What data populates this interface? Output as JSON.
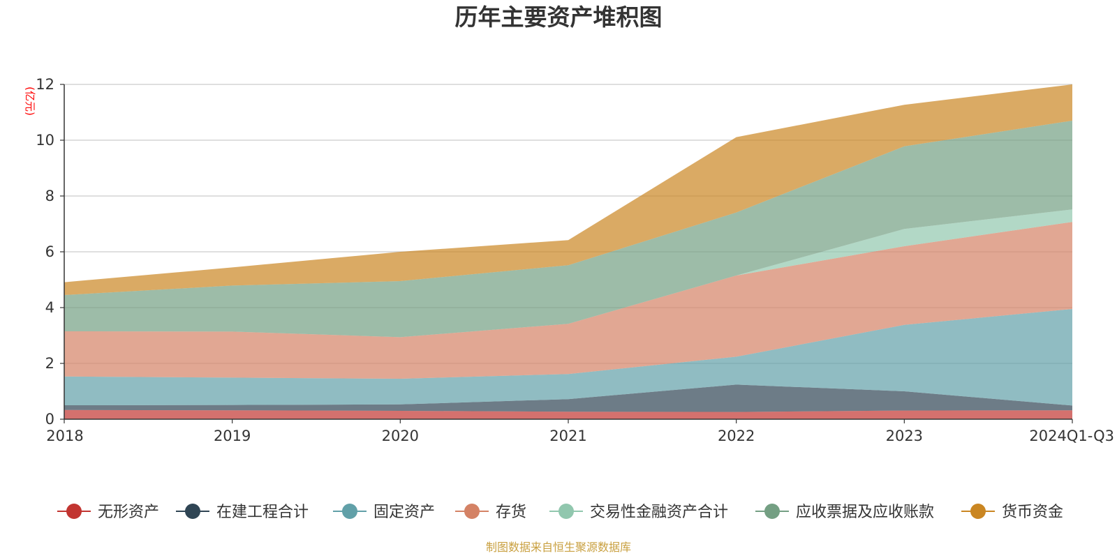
{
  "chart_data": {
    "type": "area",
    "stacked": true,
    "title": "历年主要资产堆积图",
    "y_unit": "(亿元)",
    "categories": [
      "2018",
      "2019",
      "2020",
      "2021",
      "2022",
      "2023",
      "2024Q1-Q3"
    ],
    "ylim": [
      0,
      12
    ],
    "y_ticks": [
      "0",
      "2",
      "4",
      "6",
      "8",
      "10",
      "12"
    ],
    "grid": true,
    "legend_position": "bottom",
    "series": [
      {
        "name": "无形资产",
        "color": "#c23531",
        "values": [
          0.33,
          0.32,
          0.3,
          0.27,
          0.26,
          0.31,
          0.32
        ]
      },
      {
        "name": "在建工程合计",
        "color": "#2f4554",
        "values": [
          0.17,
          0.19,
          0.23,
          0.45,
          0.98,
          0.69,
          0.17
        ]
      },
      {
        "name": "固定资产",
        "color": "#61a0a8",
        "values": [
          1.03,
          0.98,
          0.92,
          0.9,
          1.0,
          2.38,
          3.46
        ]
      },
      {
        "name": "存货",
        "color": "#d48265",
        "values": [
          1.62,
          1.65,
          1.49,
          1.8,
          2.91,
          2.82,
          3.12
        ]
      },
      {
        "name": "交易性金融资产合计",
        "color": "#91c7ae",
        "values": [
          0,
          0,
          0,
          0,
          0,
          0.62,
          0.45
        ]
      },
      {
        "name": "应收票据及应收账款",
        "color": "#749f83",
        "values": [
          1.3,
          1.65,
          2.01,
          2.1,
          2.26,
          2.96,
          3.18
        ]
      },
      {
        "name": "货币资金",
        "color": "#ca8622",
        "values": [
          0.46,
          0.65,
          1.05,
          0.9,
          2.7,
          1.49,
          1.3
        ]
      }
    ],
    "source": "制图数据来自恒生聚源数据库",
    "source_color": "#c9a040",
    "unit_color": "#ff0000"
  }
}
